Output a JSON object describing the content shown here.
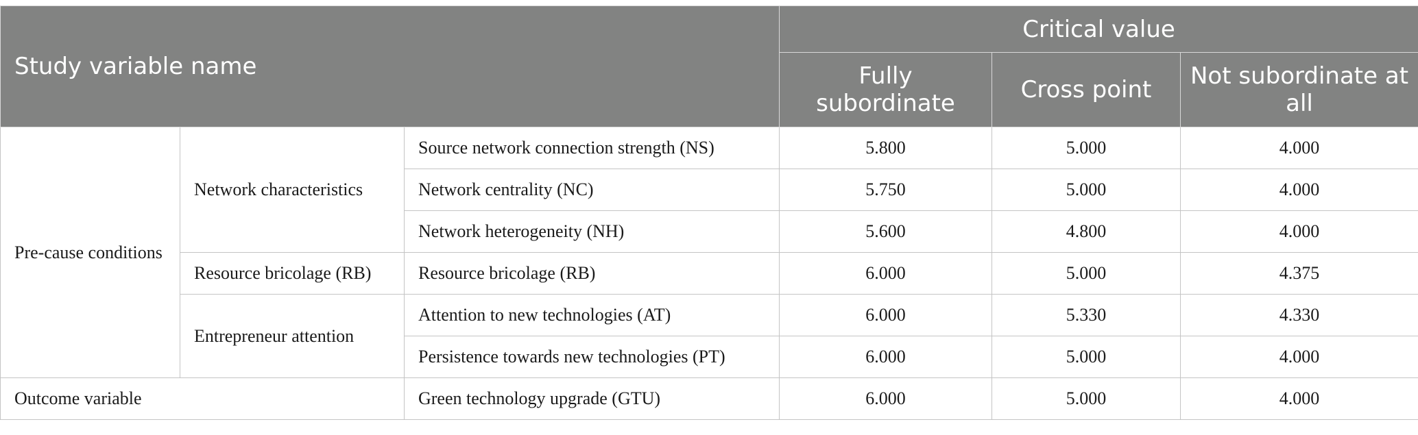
{
  "header": {
    "study_variable_name": "Study variable name",
    "critical_value": "Critical value",
    "columns": [
      "Fully subordinate",
      "Cross point",
      "Not subordinate at all"
    ]
  },
  "groups": {
    "pre_cause": "Pre-cause conditions",
    "network_characteristics": "Network characteristics",
    "resource_bricolage": "Resource bricolage (RB)",
    "entrepreneur_attention": "Entrepreneur attention",
    "outcome_variable": "Outcome variable"
  },
  "rows": [
    {
      "variable": "Source network connection strength (NS)",
      "fully": "5.800",
      "cross": "5.000",
      "not": "4.000"
    },
    {
      "variable": "Network centrality (NC)",
      "fully": "5.750",
      "cross": "5.000",
      "not": "4.000"
    },
    {
      "variable": "Network heterogeneity (NH)",
      "fully": "5.600",
      "cross": "4.800",
      "not": "4.000"
    },
    {
      "variable": "Resource bricolage (RB)",
      "fully": "6.000",
      "cross": "5.000",
      "not": "4.375"
    },
    {
      "variable": "Attention to new technologies (AT)",
      "fully": "6.000",
      "cross": "5.330",
      "not": "4.330"
    },
    {
      "variable": "Persistence towards new technologies (PT)",
      "fully": "6.000",
      "cross": "5.000",
      "not": "4.000"
    },
    {
      "variable": "Green technology upgrade (GTU)",
      "fully": "6.000",
      "cross": "5.000",
      "not": "4.000"
    }
  ]
}
